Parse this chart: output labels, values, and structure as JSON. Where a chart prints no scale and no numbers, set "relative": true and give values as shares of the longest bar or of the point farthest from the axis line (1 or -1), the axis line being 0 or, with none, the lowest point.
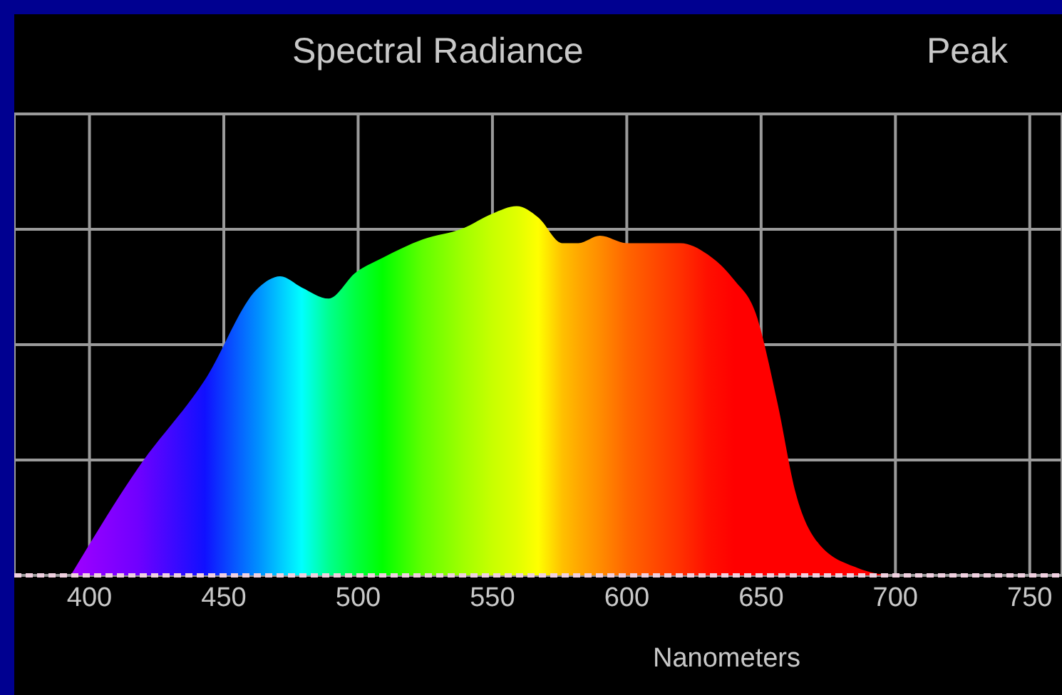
{
  "chart_data": {
    "type": "area",
    "title": "Spectral Radiance",
    "xlabel": "Nanometers",
    "annotations": [
      "Peak"
    ],
    "relative": true,
    "grid": true,
    "xlim": [
      372,
      762
    ],
    "xticks": [
      400,
      450,
      500,
      550,
      600,
      650,
      700,
      750
    ],
    "x": [
      393,
      418,
      443,
      463,
      471,
      479,
      489,
      499,
      509,
      524,
      539,
      550,
      559,
      567,
      576,
      582,
      590,
      600,
      620,
      630,
      640,
      648,
      656,
      663,
      671,
      686,
      700,
      750
    ],
    "values": [
      0,
      0.29,
      0.53,
      0.78,
      0.81,
      0.78,
      0.75,
      0.82,
      0.86,
      0.91,
      0.94,
      0.98,
      1,
      0.97,
      0.9,
      0.9,
      0.92,
      0.9,
      0.9,
      0.87,
      0.8,
      0.71,
      0.47,
      0.22,
      0.09,
      0.02,
      0,
      0
    ],
    "colors": [
      "#a000ff",
      "#7000ff",
      "#1010ff",
      "#0090ff",
      "#00c8ff",
      "#00ffff",
      "#00ff90",
      "#00ff40",
      "#00ff00",
      "#60ff00",
      "#a0ff00",
      "#c8ff00",
      "#e0ff00",
      "#ffff00",
      "#ffc000",
      "#ffa800",
      "#ff8c00",
      "#ff6600",
      "#ff3000",
      "#ff1000",
      "#ff0000",
      "#ff0000",
      "#ff0000",
      "#ff0000",
      "#ff0000",
      "#ff0000",
      "#ff0000",
      "#ff0000"
    ]
  }
}
